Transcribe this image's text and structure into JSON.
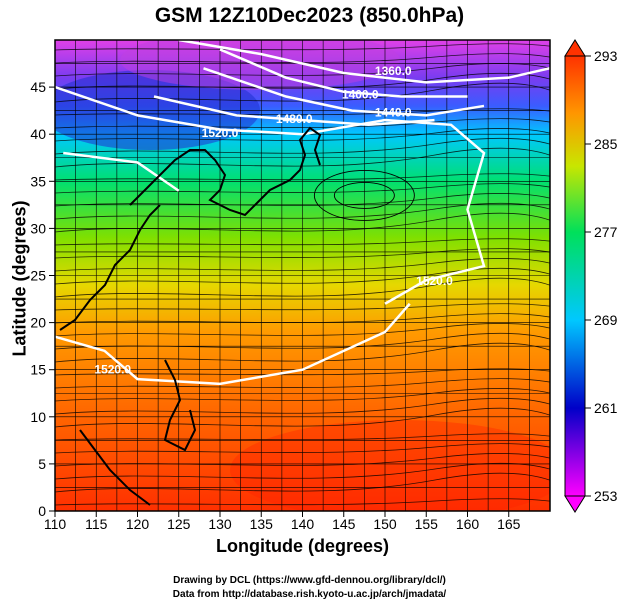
{
  "title": "GSM 12Z10Dec2023 (850.0hPa)",
  "axes": {
    "xlabel": "Longitude (degrees)",
    "ylabel": "Latitude (degrees)",
    "x_ticks": [
      110,
      115,
      120,
      125,
      130,
      135,
      140,
      145,
      150,
      155,
      160,
      165
    ],
    "y_ticks": [
      0,
      5,
      10,
      15,
      20,
      25,
      30,
      35,
      40,
      45
    ],
    "xlim": [
      110,
      170
    ],
    "ylim": [
      0,
      50
    ]
  },
  "colorbar": {
    "ticks": [
      253,
      261,
      269,
      277,
      285,
      293
    ],
    "range": [
      253,
      293
    ],
    "colors": [
      "#ff00ff",
      "#0000c8",
      "#00c8ff",
      "#00e05a",
      "#c8e600",
      "#ff9600",
      "#ff3200"
    ]
  },
  "contours": [
    {
      "label": "1360.0"
    },
    {
      "label": "1400.0"
    },
    {
      "label": "1440.0"
    },
    {
      "label": "1480.0"
    },
    {
      "label": "1520.0"
    },
    {
      "label": "1520.0"
    },
    {
      "label": "1520.0"
    }
  ],
  "credits": {
    "line1": "Drawing by DCL (https://www.gfd-dennou.org/library/dcl/)",
    "line2": "Data from http://database.rish.kyoto-u.ac.jp/arch/jmadata/"
  }
}
